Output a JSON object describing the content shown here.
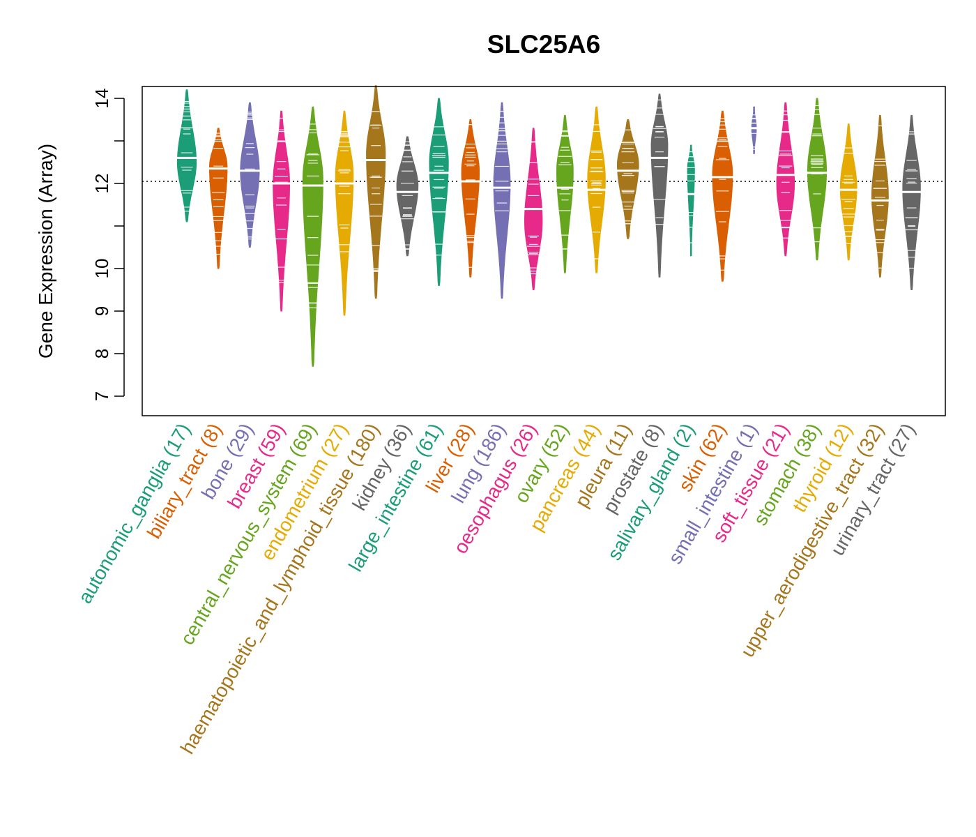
{
  "chart_data": {
    "type": "beanplot",
    "title": "SLC25A6",
    "xlabel": "",
    "ylabel": "Gene Expression (Array)",
    "ylim": [
      6.6,
      14.3
    ],
    "yticks": [
      7,
      8,
      9,
      10,
      12,
      14
    ],
    "reference_line": 12.05,
    "reference_line_style": "dotted",
    "grid": false,
    "categories": [
      {
        "name": "autonomic_ganglia",
        "count": "(17)",
        "color": "#1B9E77",
        "min": 11.1,
        "max": 14.2,
        "median": 12.6,
        "mode": 12.5,
        "width": 0.8
      },
      {
        "name": "biliary_tract",
        "count": "(8)",
        "color": "#D95F02",
        "min": 10.0,
        "max": 13.3,
        "median": 12.35,
        "mode": 12.4,
        "width": 0.75
      },
      {
        "name": "bone",
        "count": "(29)",
        "color": "#7570B3",
        "min": 10.5,
        "max": 13.9,
        "median": 12.3,
        "mode": 12.3,
        "width": 0.8
      },
      {
        "name": "breast",
        "count": "(59)",
        "color": "#E7298A",
        "min": 9.0,
        "max": 13.7,
        "median": 12.0,
        "mode": 12.0,
        "width": 0.7
      },
      {
        "name": "central_nervous_system",
        "count": "(69)",
        "color": "#66A61E",
        "min": 7.7,
        "max": 13.8,
        "median": 11.95,
        "mode": 12.1,
        "width": 0.85
      },
      {
        "name": "endometrium",
        "count": "(27)",
        "color": "#E6AB02",
        "min": 8.9,
        "max": 13.7,
        "median": 12.0,
        "mode": 12.2,
        "width": 0.75
      },
      {
        "name": "haematopoietic_and_lymphoid_tissue",
        "count": "(180)",
        "color": "#A6761D",
        "min": 9.3,
        "max": 14.3,
        "median": 12.55,
        "mode": 12.7,
        "width": 0.8
      },
      {
        "name": "kidney",
        "count": "(36)",
        "color": "#666666",
        "min": 10.3,
        "max": 13.1,
        "median": 11.8,
        "mode": 11.95,
        "width": 0.9
      },
      {
        "name": "large_intestine",
        "count": "(61)",
        "color": "#1B9E77",
        "min": 9.6,
        "max": 14.0,
        "median": 12.25,
        "mode": 12.5,
        "width": 0.8
      },
      {
        "name": "liver",
        "count": "(28)",
        "color": "#D95F02",
        "min": 9.8,
        "max": 13.5,
        "median": 12.05,
        "mode": 12.3,
        "width": 0.75
      },
      {
        "name": "lung",
        "count": "(186)",
        "color": "#7570B3",
        "min": 9.3,
        "max": 13.9,
        "median": 11.9,
        "mode": 12.0,
        "width": 0.7
      },
      {
        "name": "oesophagus",
        "count": "(26)",
        "color": "#E7298A",
        "min": 9.5,
        "max": 13.3,
        "median": 11.4,
        "mode": 11.1,
        "width": 0.75
      },
      {
        "name": "ovary",
        "count": "(52)",
        "color": "#66A61E",
        "min": 9.9,
        "max": 13.6,
        "median": 11.9,
        "mode": 12.3,
        "width": 0.7
      },
      {
        "name": "pancreas",
        "count": "(44)",
        "color": "#E6AB02",
        "min": 9.9,
        "max": 13.8,
        "median": 11.85,
        "mode": 12.1,
        "width": 0.75
      },
      {
        "name": "pleura",
        "count": "(11)",
        "color": "#A6761D",
        "min": 10.7,
        "max": 13.5,
        "median": 12.3,
        "mode": 12.45,
        "width": 0.9
      },
      {
        "name": "prostate",
        "count": "(8)",
        "color": "#666666",
        "min": 9.8,
        "max": 14.1,
        "median": 12.6,
        "mode": 12.9,
        "width": 0.7
      },
      {
        "name": "salivary_gland",
        "count": "(2)",
        "color": "#1B9E77",
        "min": 10.3,
        "max": 12.9,
        "median": 11.75,
        "mode": 12.35,
        "width": 0.3
      },
      {
        "name": "skin",
        "count": "(62)",
        "color": "#D95F02",
        "min": 9.7,
        "max": 13.7,
        "median": 12.15,
        "mode": 12.2,
        "width": 0.85
      },
      {
        "name": "small_intestine",
        "count": "(1)",
        "color": "#7570B3",
        "min": 12.7,
        "max": 13.8,
        "median": 13.3,
        "mode": 13.3,
        "width": 0.2
      },
      {
        "name": "soft_tissue",
        "count": "(21)",
        "color": "#E7298A",
        "min": 10.3,
        "max": 13.9,
        "median": 12.2,
        "mode": 12.0,
        "width": 0.75
      },
      {
        "name": "stomach",
        "count": "(38)",
        "color": "#66A61E",
        "min": 10.2,
        "max": 14.0,
        "median": 12.25,
        "mode": 12.3,
        "width": 0.8
      },
      {
        "name": "thyroid",
        "count": "(12)",
        "color": "#E6AB02",
        "min": 10.2,
        "max": 13.4,
        "median": 11.85,
        "mode": 11.9,
        "width": 0.7
      },
      {
        "name": "upper_aerodigestive_tract",
        "count": "(32)",
        "color": "#A6761D",
        "min": 9.8,
        "max": 13.6,
        "median": 11.6,
        "mode": 11.7,
        "width": 0.7
      },
      {
        "name": "urinary_tract",
        "count": "(27)",
        "color": "#666666",
        "min": 9.5,
        "max": 13.6,
        "median": 11.8,
        "mode": 11.9,
        "width": 0.75
      }
    ]
  }
}
